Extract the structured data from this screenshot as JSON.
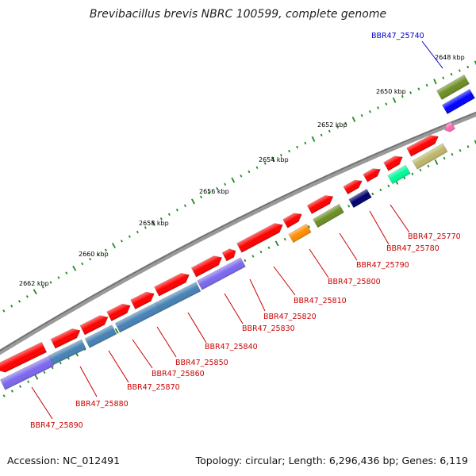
{
  "title": "Brevibacillus brevis NBRC 100599, complete genome",
  "accession": "Accession: NC_012491",
  "summary": "Topology: circular; Length: 6,296,436 bp; Genes: 6,119",
  "colors": {
    "backbone": "#808080",
    "tick": "#1e8c1e",
    "label_red": "#cc0000",
    "label_blue": "#0000cc",
    "cds_red": "#ff0000",
    "cds_blue": "#0000ff",
    "cds_navy": "#00006e",
    "cds_olive": "#6b8e23",
    "cds_khaki": "#bdb76b",
    "cds_steel": "#4682b4",
    "cds_slate": "#7b68ee",
    "cds_orange": "#ff8c00",
    "cds_spring": "#00fa9a",
    "cds_pink": "#ff69b4"
  },
  "ticks": [
    {
      "label": "2648 kbp"
    },
    {
      "label": "2650 kbp"
    },
    {
      "label": "2652 kbp"
    },
    {
      "label": "2654 kbp"
    },
    {
      "label": "2656 kbp"
    },
    {
      "label": "2658 kbp"
    },
    {
      "label": "2660 kbp"
    },
    {
      "label": "2662 kbp"
    }
  ],
  "genes": [
    {
      "label": "BBR47_25740",
      "label_color": "blue"
    },
    {
      "label": "BBR47_25770",
      "label_color": "red"
    },
    {
      "label": "BBR47_25780",
      "label_color": "red"
    },
    {
      "label": "BBR47_25790",
      "label_color": "red"
    },
    {
      "label": "BBR47_25800",
      "label_color": "red"
    },
    {
      "label": "BBR47_25810",
      "label_color": "red"
    },
    {
      "label": "BBR47_25820",
      "label_color": "red"
    },
    {
      "label": "BBR47_25830",
      "label_color": "red"
    },
    {
      "label": "BBR47_25840",
      "label_color": "red"
    },
    {
      "label": "BBR47_25850",
      "label_color": "red"
    },
    {
      "label": "BBR47_25860",
      "label_color": "red"
    },
    {
      "label": "BBR47_25870",
      "label_color": "red"
    },
    {
      "label": "BBR47_25880",
      "label_color": "red"
    },
    {
      "label": "BBR47_25890",
      "label_color": "red"
    }
  ]
}
